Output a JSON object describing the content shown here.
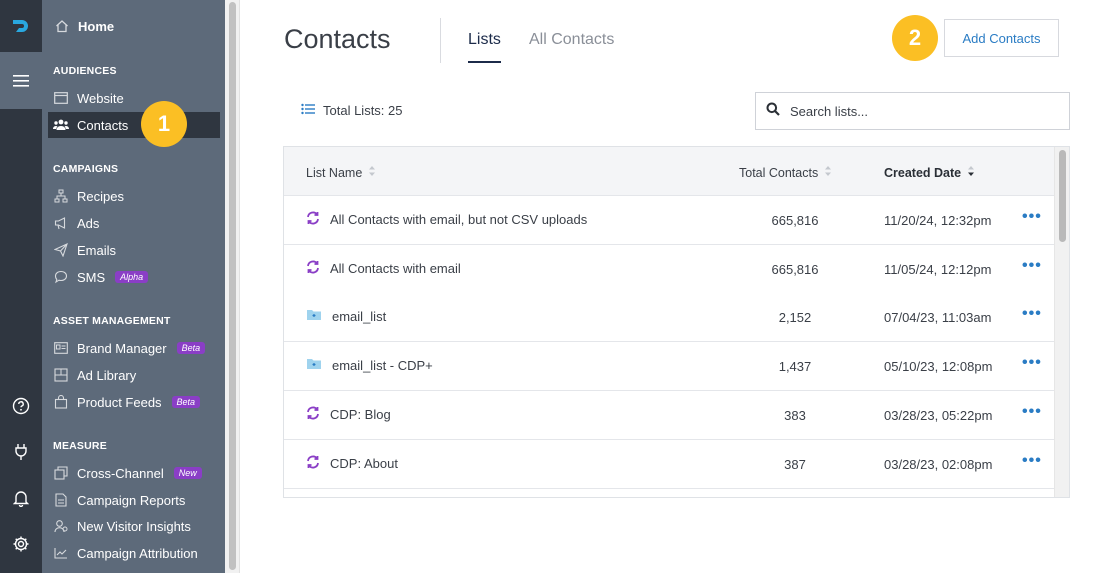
{
  "nav": {
    "home": "Home",
    "sections": [
      {
        "title": "AUDIENCES",
        "items": [
          {
            "label": "Website",
            "icon": "browser-icon"
          },
          {
            "label": "Contacts",
            "icon": "users-icon",
            "active": true
          }
        ]
      },
      {
        "title": "CAMPAIGNS",
        "items": [
          {
            "label": "Recipes",
            "icon": "sitemap-icon"
          },
          {
            "label": "Ads",
            "icon": "megaphone-icon"
          },
          {
            "label": "Emails",
            "icon": "paper-plane-icon"
          },
          {
            "label": "SMS",
            "icon": "chat-icon",
            "badge": "Alpha"
          }
        ]
      },
      {
        "title": "ASSET MANAGEMENT",
        "items": [
          {
            "label": "Brand Manager",
            "icon": "id-card-icon",
            "badge": "Beta"
          },
          {
            "label": "Ad Library",
            "icon": "library-icon"
          },
          {
            "label": "Product Feeds",
            "icon": "bag-icon",
            "badge": "Beta"
          }
        ]
      },
      {
        "title": "MEASURE",
        "items": [
          {
            "label": "Cross-Channel",
            "icon": "layers-icon",
            "badge": "New"
          },
          {
            "label": "Campaign Reports",
            "icon": "report-icon"
          },
          {
            "label": "New Visitor Insights",
            "icon": "visitor-icon"
          },
          {
            "label": "Campaign Attribution",
            "icon": "chart-icon"
          }
        ]
      }
    ]
  },
  "callouts": {
    "one": "1",
    "two": "2"
  },
  "header": {
    "title": "Contacts",
    "tabs": {
      "lists": "Lists",
      "all": "All Contacts"
    },
    "add_button": "Add Contacts"
  },
  "toolbar": {
    "total_label": "Total Lists: 25",
    "search_placeholder": "Search lists..."
  },
  "table": {
    "columns": {
      "name": "List Name",
      "total": "Total Contacts",
      "created": "Created Date"
    },
    "rows": [
      {
        "icon": "sync",
        "name": "All Contacts with email, but not CSV uploads",
        "total": "665,816",
        "created": "11/20/24, 12:32pm"
      },
      {
        "icon": "sync",
        "name": "All Contacts with email",
        "total": "665,816",
        "created": "11/05/24, 12:12pm"
      },
      {
        "icon": "folder",
        "name": "email_list",
        "total": "2,152",
        "created": "07/04/23, 11:03am"
      },
      {
        "icon": "folder",
        "name": "email_list - CDP+",
        "total": "1,437",
        "created": "05/10/23, 12:08pm"
      },
      {
        "icon": "sync",
        "name": "CDP: Blog",
        "total": "383",
        "created": "03/28/23, 05:22pm"
      },
      {
        "icon": "sync",
        "name": "CDP: About",
        "total": "387",
        "created": "03/28/23, 02:08pm"
      }
    ],
    "more_label": "•••"
  },
  "colors": {
    "accent": "#2a7cc4",
    "sidebar": "#5d6a7a",
    "rail": "#2f3640",
    "callout": "#fbbf24",
    "sync_icon": "#8a3ec6"
  }
}
